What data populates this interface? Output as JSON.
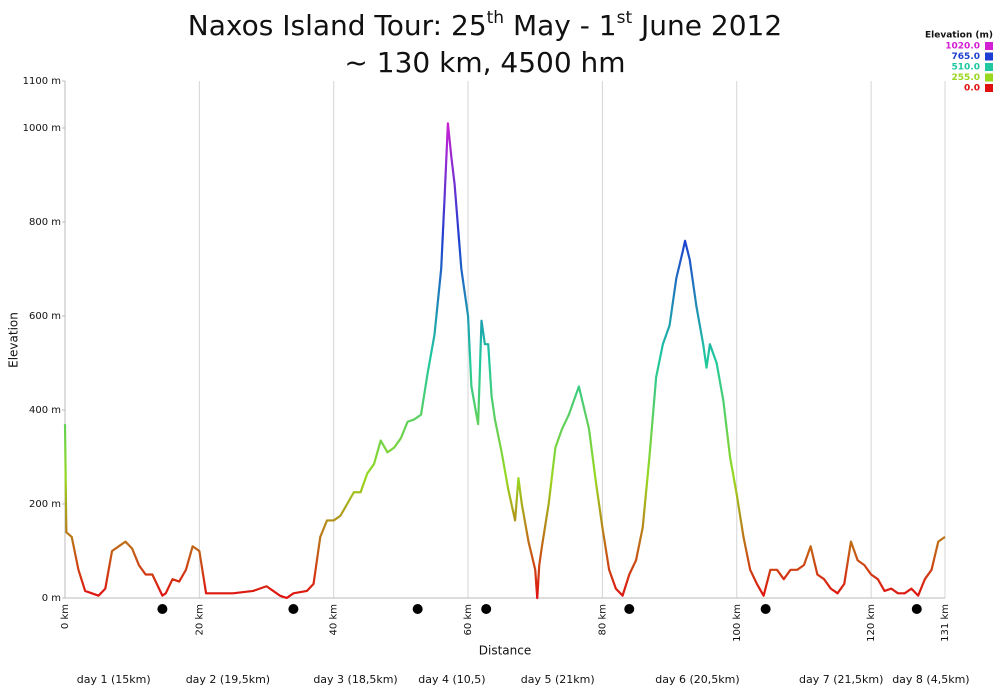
{
  "chart_data": {
    "type": "line",
    "title_parts": [
      "Naxos Island Tour: 25",
      "th",
      " May - 1",
      "st",
      " June 2012"
    ],
    "subtitle": "~ 130 km, 4500 hm",
    "x_label": "Distance",
    "y_label": "Elevation",
    "xlim": [
      0,
      131
    ],
    "ylim": [
      0,
      1100
    ],
    "xticks": [
      {
        "value": 0,
        "label": "0 km"
      },
      {
        "value": 20,
        "label": "20 km"
      },
      {
        "value": 40,
        "label": "40 km"
      },
      {
        "value": 60,
        "label": "60 km"
      },
      {
        "value": 80,
        "label": "80 km"
      },
      {
        "value": 100,
        "label": "100 km"
      },
      {
        "value": 120,
        "label": "120 km"
      },
      {
        "value": 131,
        "label": "131 km"
      }
    ],
    "yticks": [
      {
        "value": 0,
        "label": "0 m"
      },
      {
        "value": 200,
        "label": "200 m"
      },
      {
        "value": 400,
        "label": "400 m"
      },
      {
        "value": 600,
        "label": "600 m"
      },
      {
        "value": 800,
        "label": "800 m"
      },
      {
        "value": 1000,
        "label": "1000 m"
      },
      {
        "value": 1100,
        "label": "1100 m"
      }
    ],
    "grid": true,
    "legend": {
      "title": "Elevation (m)",
      "position": "top-right",
      "stops": [
        {
          "value": 1020,
          "label": "1020.0",
          "color": "#d21fd2"
        },
        {
          "value": 765,
          "label": "765.0",
          "color": "#1f3fd2"
        },
        {
          "value": 510,
          "label": "510.0",
          "color": "#1fc8a0"
        },
        {
          "value": 255,
          "label": "255.0",
          "color": "#98d81f"
        },
        {
          "value": 0,
          "label": "0.0",
          "color": "#e01010"
        }
      ]
    },
    "x": [
      0,
      0.2,
      1,
      2,
      3,
      4,
      5,
      6,
      7,
      8,
      9,
      10,
      11,
      12,
      13,
      14,
      14.5,
      15,
      16,
      17,
      18,
      19,
      20,
      21,
      22,
      25,
      28,
      30,
      31,
      32,
      33,
      34,
      36,
      37,
      38,
      39,
      40,
      41,
      42,
      43,
      44,
      45,
      46,
      47,
      48,
      49,
      50,
      51,
      52,
      53,
      54,
      55,
      56,
      56.5,
      57,
      57.5,
      58,
      59,
      59.5,
      60,
      60.5,
      61,
      61.5,
      62,
      62.5,
      63,
      63.5,
      64,
      65,
      66,
      67,
      67.5,
      68,
      69,
      70,
      70.3,
      70.6,
      71,
      72,
      73,
      74,
      75,
      76,
      76.5,
      77,
      78,
      79,
      80,
      81,
      82,
      83,
      84,
      85,
      86,
      87,
      88,
      89,
      90,
      91,
      92,
      92.3,
      93,
      94,
      95,
      95.5,
      96,
      97,
      98,
      99,
      100,
      101,
      102,
      103,
      104,
      105,
      106,
      107,
      108,
      109,
      110,
      111,
      112,
      113,
      114,
      115,
      116,
      117,
      118,
      119,
      120,
      121,
      122,
      123,
      124,
      125,
      126,
      127,
      128,
      129,
      130,
      131
    ],
    "values": [
      370,
      140,
      130,
      60,
      15,
      10,
      5,
      20,
      100,
      110,
      120,
      105,
      70,
      50,
      50,
      20,
      5,
      10,
      40,
      35,
      60,
      110,
      100,
      10,
      10,
      10,
      15,
      25,
      15,
      5,
      0,
      10,
      15,
      30,
      130,
      165,
      165,
      175,
      200,
      225,
      225,
      265,
      285,
      335,
      310,
      320,
      340,
      375,
      380,
      390,
      480,
      560,
      700,
      850,
      1010,
      940,
      880,
      700,
      650,
      600,
      450,
      410,
      370,
      590,
      540,
      540,
      430,
      380,
      310,
      230,
      165,
      255,
      200,
      120,
      60,
      0,
      70,
      110,
      200,
      320,
      360,
      390,
      430,
      450,
      420,
      360,
      250,
      150,
      60,
      20,
      5,
      50,
      80,
      150,
      300,
      470,
      540,
      580,
      680,
      740,
      760,
      720,
      620,
      540,
      490,
      540,
      500,
      420,
      300,
      220,
      130,
      60,
      30,
      5,
      60,
      60,
      40,
      60,
      60,
      70,
      110,
      50,
      40,
      20,
      10,
      30,
      120,
      80,
      70,
      50,
      40,
      15,
      20,
      10,
      10,
      20,
      5,
      40,
      60,
      120,
      130
    ],
    "stage_ends": [
      14.5,
      34,
      52.5,
      62.7,
      84,
      104.3,
      126.8
    ],
    "days": [
      "day 1 (15km)",
      "day 2 (19,5km)",
      "day 3 (18,5km)",
      "day 4 (10,5)",
      "day 5 (21km)",
      "day 6 (20,5km)",
      "day 7 (21,5km)",
      "day 8 (4,5km)"
    ]
  }
}
